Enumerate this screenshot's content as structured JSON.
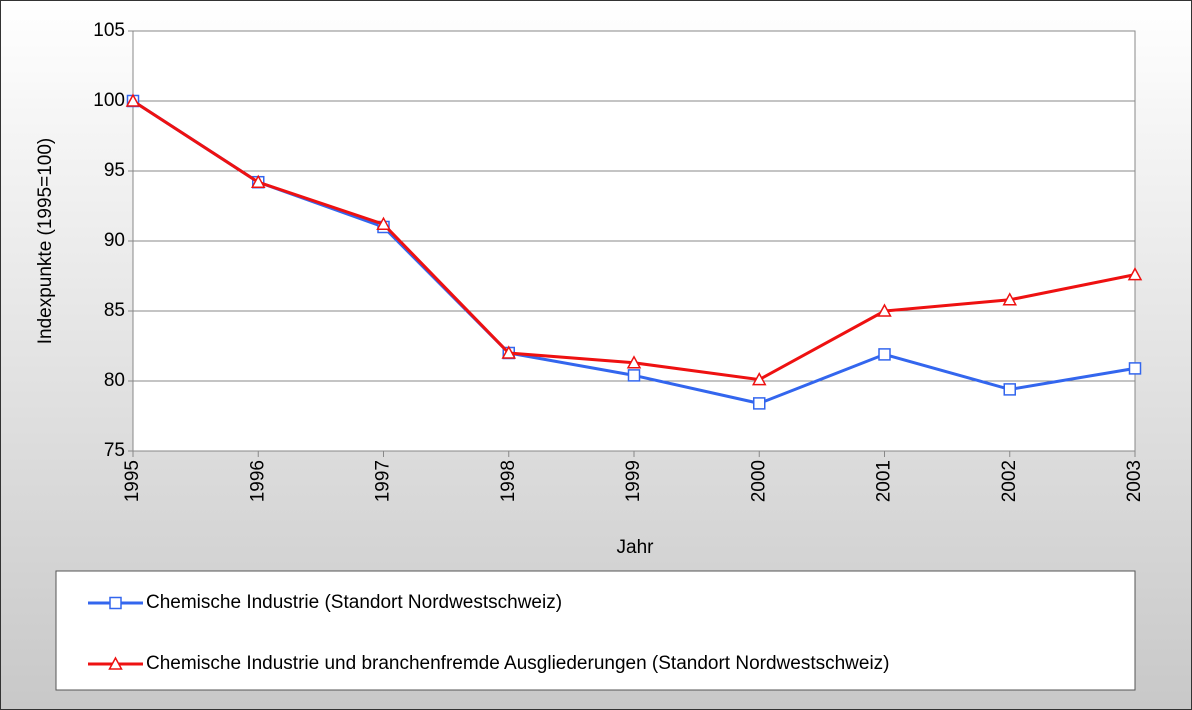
{
  "chart_data": {
    "type": "line",
    "x_label": "Jahr",
    "y_label": "Indexpunkte (1995=100)",
    "categories": [
      "1995",
      "1996",
      "1997",
      "1998",
      "1999",
      "2000",
      "2001",
      "2002",
      "2003"
    ],
    "series": [
      {
        "name": "Chemische Industrie (Standort Nordwestschweiz)",
        "color": "#3366ee",
        "marker": "square",
        "values": [
          100,
          94.2,
          91.0,
          82.0,
          80.4,
          78.4,
          81.9,
          79.4,
          80.9
        ]
      },
      {
        "name": "Chemische Industrie und branchenfremde Ausgliederungen (Standort Nordwestschweiz)",
        "color": "#ee1111",
        "marker": "triangle",
        "values": [
          100,
          94.2,
          91.2,
          82.0,
          81.3,
          80.1,
          85.0,
          85.8,
          87.6
        ]
      }
    ],
    "ylim": [
      75,
      105
    ],
    "yticks": [
      75,
      80,
      85,
      90,
      95,
      100,
      105
    ],
    "grid": true
  }
}
